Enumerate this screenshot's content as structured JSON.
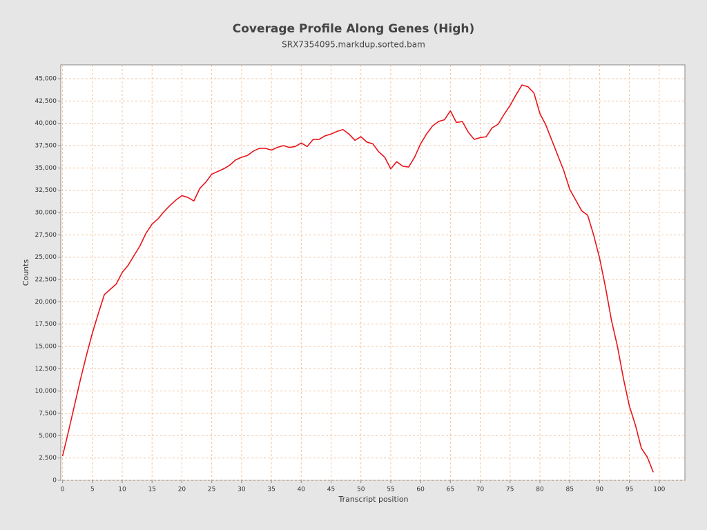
{
  "chart_data": {
    "type": "line",
    "title": "Coverage Profile Along Genes (High)",
    "subtitle": "SRX7354095.markdup.sorted.bam",
    "x_label": "Transcript position",
    "y_label": "Counts",
    "x": [
      0,
      1,
      2,
      3,
      4,
      5,
      6,
      7,
      8,
      9,
      10,
      11,
      12,
      13,
      14,
      15,
      16,
      17,
      18,
      19,
      20,
      21,
      22,
      23,
      24,
      25,
      26,
      27,
      28,
      29,
      30,
      31,
      32,
      33,
      34,
      35,
      36,
      37,
      38,
      39,
      40,
      41,
      42,
      43,
      44,
      45,
      46,
      47,
      48,
      49,
      50,
      51,
      52,
      53,
      54,
      55,
      56,
      57,
      58,
      59,
      60,
      61,
      62,
      63,
      64,
      65,
      66,
      67,
      68,
      69,
      70,
      71,
      72,
      73,
      74,
      75,
      76,
      77,
      78,
      79,
      80,
      81,
      82,
      83,
      84,
      85,
      86,
      87,
      88,
      89,
      90,
      91,
      92,
      93,
      94,
      95,
      96,
      97,
      98,
      99
    ],
    "series": [
      {
        "name": "Counts",
        "color": "#e8141a",
        "values": [
          2700,
          5500,
          8400,
          11300,
          14000,
          16500,
          18700,
          20800,
          21400,
          22000,
          23300,
          24100,
          25200,
          26300,
          27700,
          28700,
          29300,
          30100,
          30800,
          31400,
          31900,
          31700,
          31300,
          32700,
          33400,
          34300,
          34600,
          34900,
          35300,
          35900,
          36200,
          36400,
          36900,
          37200,
          37200,
          37000,
          37300,
          37500,
          37300,
          37400,
          37800,
          37400,
          38200,
          38200,
          38600,
          38800,
          39100,
          39300,
          38800,
          38100,
          38500,
          37900,
          37700,
          36800,
          36200,
          34900,
          35700,
          35200,
          35100,
          36200,
          37700,
          38800,
          39700,
          40200,
          40400,
          41400,
          40100,
          40200,
          39000,
          38200,
          38400,
          38500,
          39500,
          39900,
          41000,
          42000,
          43200,
          44300,
          44100,
          43400,
          41100,
          39800,
          38100,
          36400,
          34700,
          32600,
          31400,
          30200,
          29700,
          27500,
          24900,
          21600,
          17900,
          15000,
          11400,
          8300,
          6200,
          3600,
          2600,
          900
        ]
      }
    ],
    "xlim": [
      -0.3,
      104.3
    ],
    "ylim": [
      0,
      46550
    ],
    "xticks": [
      0,
      5,
      10,
      15,
      20,
      25,
      30,
      35,
      40,
      45,
      50,
      55,
      60,
      65,
      70,
      75,
      80,
      85,
      90,
      95,
      100
    ],
    "yticks": [
      0,
      {
        "value": 2500,
        "label": "2,500"
      },
      {
        "value": 5000,
        "label": "5,000"
      },
      {
        "value": 7500,
        "label": "7,500"
      },
      {
        "value": 10000,
        "label": "10,000"
      },
      {
        "value": 12500,
        "label": "12,500"
      },
      {
        "value": 15000,
        "label": "15,000"
      },
      {
        "value": 17500,
        "label": "17,500"
      },
      {
        "value": 20000,
        "label": "20,000"
      },
      {
        "value": 22500,
        "label": "22,500"
      },
      {
        "value": 25000,
        "label": "25,000"
      },
      {
        "value": 27500,
        "label": "27,500"
      },
      {
        "value": 30000,
        "label": "30,000"
      },
      {
        "value": 32500,
        "label": "32,500"
      },
      {
        "value": 35000,
        "label": "35,000"
      },
      {
        "value": 37500,
        "label": "37,500"
      },
      {
        "value": 40000,
        "label": "40,000"
      },
      {
        "value": 42500,
        "label": "42,500"
      },
      {
        "value": 45000,
        "label": "45,000"
      }
    ],
    "grid": true
  }
}
